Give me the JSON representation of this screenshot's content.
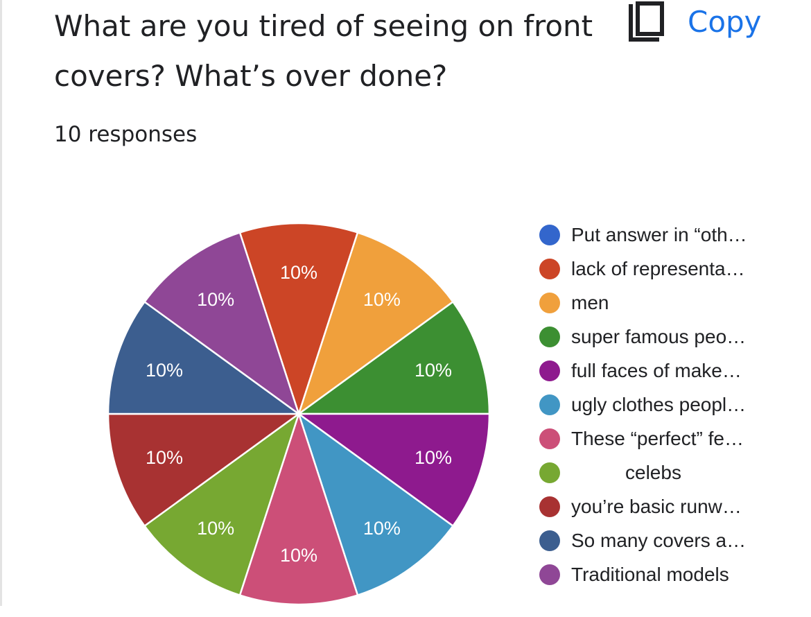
{
  "form": {
    "question": "What are you tired of seeing on front covers? What’s over done?",
    "responses": "10 responses",
    "copy_label": "Copy",
    "copy_icon": "copy-icon"
  },
  "chart_data": {
    "type": "pie",
    "categories": [
      "Put answer in “oth…",
      "lack of representa…",
      "men",
      "super famous peo…",
      "full faces of make…",
      "ugly clothes peopl…",
      "These “perfect” fe…",
      "celebs",
      "you’re basic runw…",
      "So many covers a…",
      "Traditional models"
    ],
    "values": [
      0,
      1,
      1,
      1,
      1,
      1,
      1,
      1,
      1,
      1,
      1
    ],
    "labels": [
      "",
      "10%",
      "10%",
      "10%",
      "10%",
      "10%",
      "10%",
      "10%",
      "10%",
      "10%",
      "10%"
    ],
    "colors": [
      "#3366cc",
      "#cc4526",
      "#f0a03c",
      "#3c8f32",
      "#8e1a8e",
      "#4196c4",
      "#cc4f78",
      "#77a832",
      "#a83232",
      "#3c5e8f",
      "#8f4796"
    ],
    "legend": "right"
  }
}
